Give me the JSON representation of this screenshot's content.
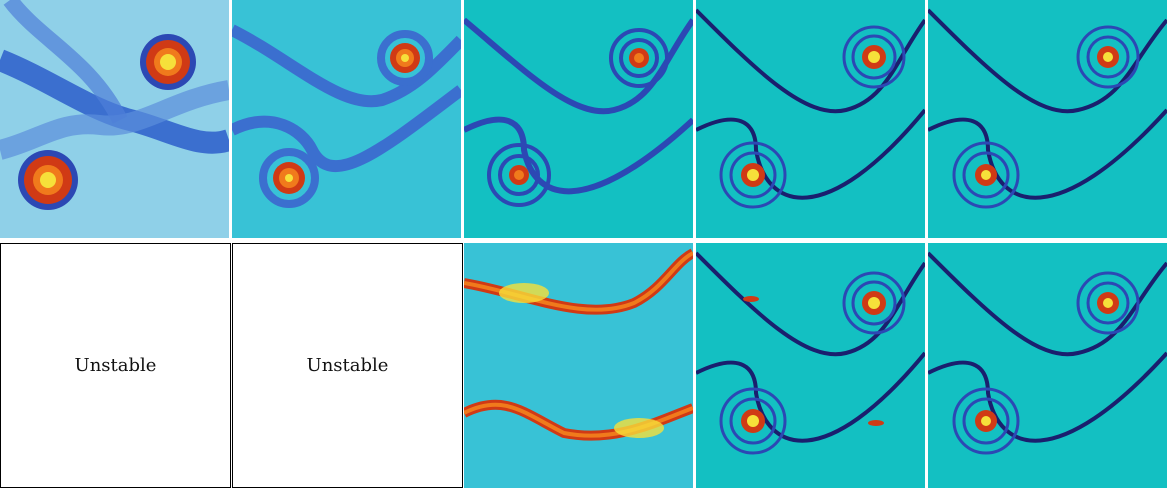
{
  "panels_row2": {
    "col1": {
      "label": "Unstable"
    },
    "col2": {
      "label": "Unstable"
    }
  },
  "colors": {
    "background": "#13c0c2",
    "band_outer": "#5b8fdb",
    "band_inner": "#2c48b4",
    "band_core": "#1a1f6e",
    "vortex_hot": "#d03a15",
    "vortex_mid": "#f07a1c",
    "vortex_core": "#f6e03a"
  }
}
